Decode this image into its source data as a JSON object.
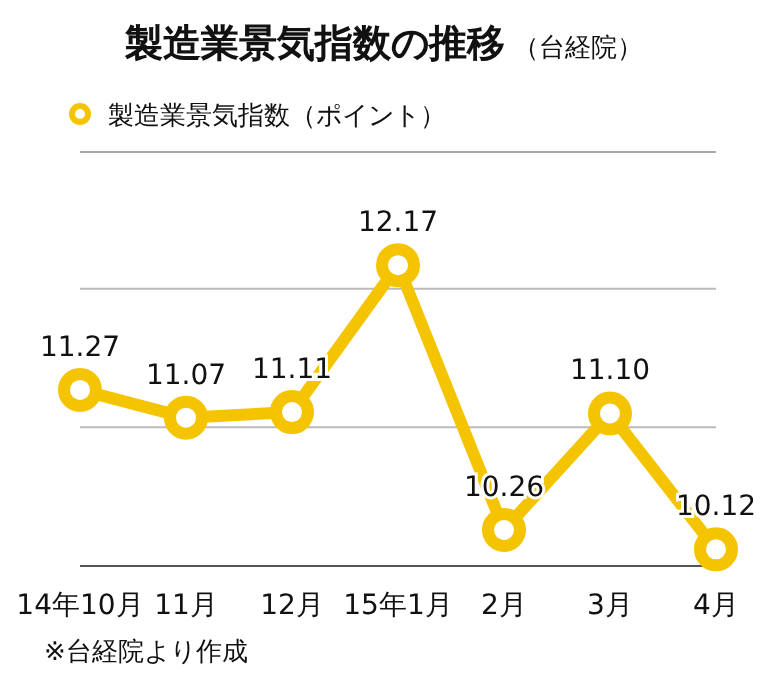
{
  "chart_data": {
    "type": "line",
    "title": "製造業景気指数の推移",
    "subtitle": "（台経院）",
    "categories": [
      "14年10月",
      "11月",
      "12月",
      "15年1月",
      "2月",
      "3月",
      "4月"
    ],
    "series": [
      {
        "name": "製造業景気指数（ポイント）",
        "color": "#f5c400",
        "values": [
          11.27,
          11.07,
          11.11,
          12.17,
          10.26,
          11.1,
          10.12
        ],
        "value_labels": [
          "11.27",
          "11.07",
          "11.11",
          "12.17",
          "10.26",
          "11.10",
          "10.12"
        ]
      }
    ],
    "ref_lines": [
      {
        "axis": "y",
        "value": 11,
        "color": "#bbbbbb"
      },
      {
        "axis": "y",
        "value": 12,
        "color": "#bbbbbb"
      }
    ],
    "tick_labels": "x",
    "legend": "top",
    "marker": "circle",
    "line_style": "solid",
    "annotations": [
      "※台経院より作成"
    ]
  }
}
